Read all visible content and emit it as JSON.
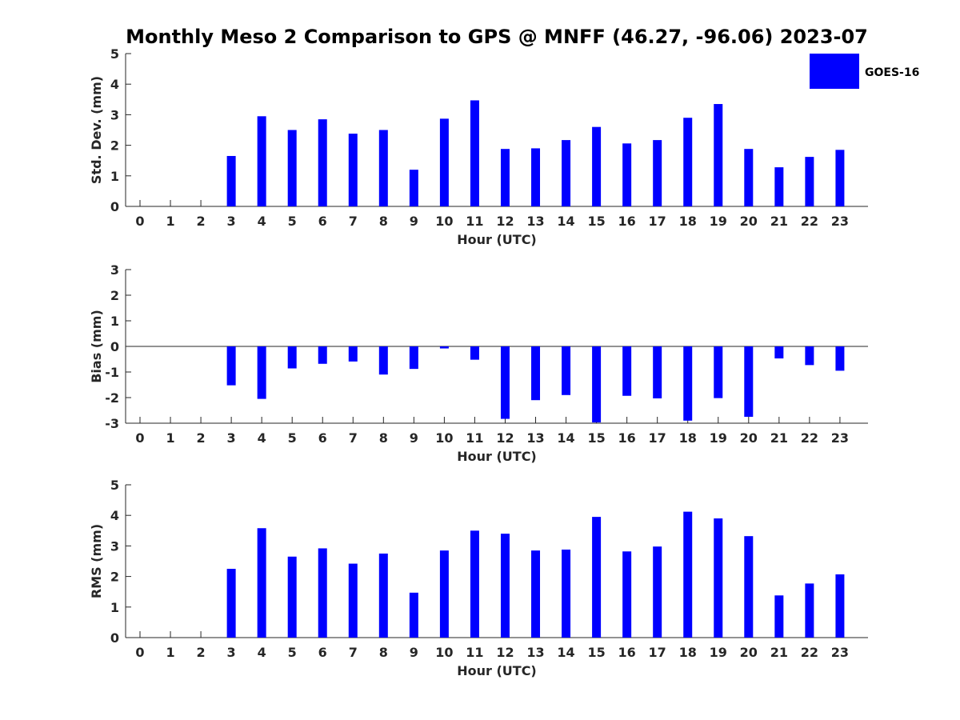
{
  "title": "Monthly Meso 2 Comparison to GPS @ MNFF (46.27, -96.06) 2023-07",
  "legend": {
    "label": "GOES-16",
    "color": "#0000ff"
  },
  "chart_data": [
    {
      "type": "bar",
      "id": "stddev",
      "title": "",
      "xlabel": "Hour (UTC)",
      "ylabel": "Std. Dev. (mm)",
      "ylim": [
        0,
        5
      ],
      "yticks": [
        0,
        1,
        2,
        3,
        4,
        5
      ],
      "categories": [
        "0",
        "1",
        "2",
        "3",
        "4",
        "5",
        "6",
        "7",
        "8",
        "9",
        "10",
        "11",
        "12",
        "13",
        "14",
        "15",
        "16",
        "17",
        "18",
        "19",
        "20",
        "21",
        "22",
        "23"
      ],
      "series": [
        {
          "name": "GOES-16",
          "color": "#0000ff",
          "values": [
            null,
            null,
            null,
            1.65,
            2.95,
            2.5,
            2.85,
            2.38,
            2.5,
            1.2,
            2.87,
            3.47,
            1.88,
            1.9,
            2.17,
            2.6,
            2.06,
            2.17,
            2.9,
            3.35,
            1.88,
            1.28,
            1.62,
            1.85
          ]
        }
      ]
    },
    {
      "type": "bar",
      "id": "bias",
      "title": "",
      "xlabel": "Hour (UTC)",
      "ylabel": "Bias (mm)",
      "ylim": [
        -3,
        3
      ],
      "yticks": [
        -3,
        -2,
        -1,
        0,
        1,
        2,
        3
      ],
      "categories": [
        "0",
        "1",
        "2",
        "3",
        "4",
        "5",
        "6",
        "7",
        "8",
        "9",
        "10",
        "11",
        "12",
        "13",
        "14",
        "15",
        "16",
        "17",
        "18",
        "19",
        "20",
        "21",
        "22",
        "23"
      ],
      "series": [
        {
          "name": "GOES-16",
          "color": "#0000ff",
          "values": [
            null,
            null,
            null,
            -1.52,
            -2.05,
            -0.86,
            -0.68,
            -0.59,
            -1.1,
            -0.88,
            -0.08,
            -0.52,
            -2.83,
            -2.1,
            -1.9,
            -2.97,
            -1.93,
            -2.03,
            -2.9,
            -2.02,
            -2.75,
            -0.47,
            -0.73,
            -0.95
          ]
        }
      ]
    },
    {
      "type": "bar",
      "id": "rms",
      "title": "",
      "xlabel": "Hour (UTC)",
      "ylabel": "RMS (mm)",
      "ylim": [
        0,
        5
      ],
      "yticks": [
        0,
        1,
        2,
        3,
        4,
        5
      ],
      "categories": [
        "0",
        "1",
        "2",
        "3",
        "4",
        "5",
        "6",
        "7",
        "8",
        "9",
        "10",
        "11",
        "12",
        "13",
        "14",
        "15",
        "16",
        "17",
        "18",
        "19",
        "20",
        "21",
        "22",
        "23"
      ],
      "series": [
        {
          "name": "GOES-16",
          "color": "#0000ff",
          "values": [
            null,
            null,
            null,
            2.25,
            3.58,
            2.65,
            2.92,
            2.42,
            2.75,
            1.47,
            2.85,
            3.5,
            3.4,
            2.85,
            2.88,
            3.95,
            2.82,
            2.98,
            4.12,
            3.9,
            3.32,
            1.38,
            1.77,
            2.07
          ]
        }
      ]
    }
  ]
}
